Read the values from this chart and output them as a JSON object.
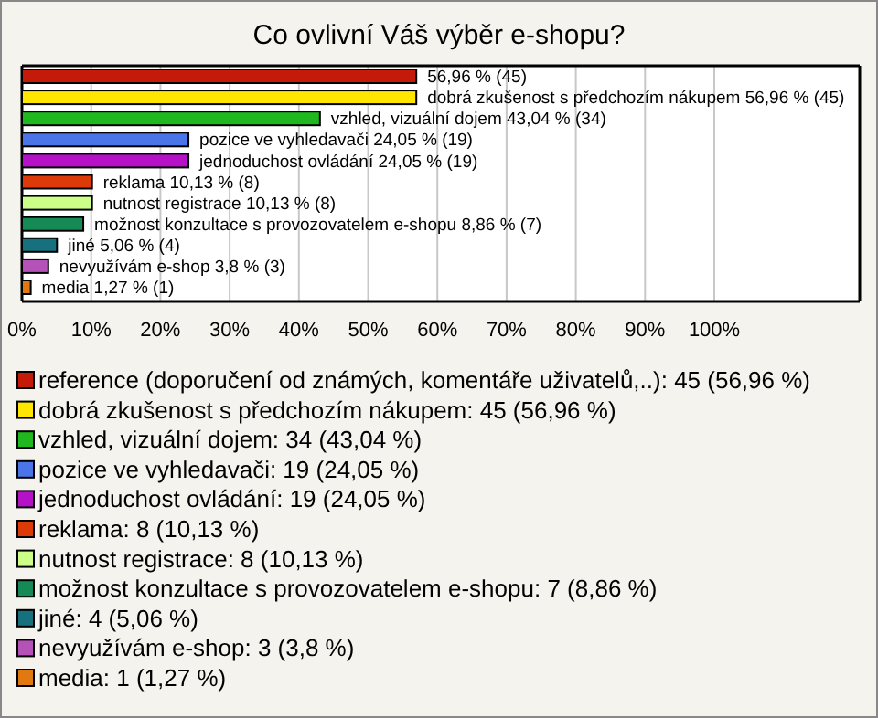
{
  "chart_data": {
    "type": "bar",
    "orientation": "horizontal",
    "title": "Co ovlivní Váš výběr e-shopu?",
    "categories": [
      null,
      null,
      null,
      null,
      null,
      null,
      null,
      null,
      null,
      null,
      null
    ],
    "values": [
      56.96,
      56.96,
      43.04,
      24.05,
      24.05,
      10.13,
      10.13,
      8.86,
      5.06,
      3.8,
      1.27
    ],
    "value_labels": [
      "56,96 % (45)",
      "dobrá zkušenost s předchozím nákupem 56,96 % (45)",
      "vzhled, vizuální dojem 43,04 % (34)",
      "pozice ve vyhledavači 24,05 % (19)",
      "jednoduchost ovládání 24,05 % (19)",
      "reklama 10,13 % (8)",
      "nutnost registrace 10,13 % (8)",
      "možnost konzultace s provozovatelem e-shopu 8,86 % (7)",
      "jiné 5,06 % (4)",
      "nevyužívám e-shop 3,8 % (3)",
      "media 1,27 % (1)"
    ],
    "colors": [
      "#c41a0a",
      "#ffe600",
      "#1fb81f",
      "#4a74e8",
      "#b512c8",
      "#dd3a0a",
      "#ccff88",
      "#158a55",
      "#16707e",
      "#b452b8",
      "#e07a10"
    ],
    "annotations": [
      "reference (doporučení od známých, komentáře uživatelů,..): 45 (56,96 %)",
      "dobrá zkušenost s předchozím nákupem: 45 (56,96 %)",
      "vzhled, vizuální dojem: 34 (43,04 %)",
      "pozice ve vyhledavači: 19 (24,05 %)",
      "jednoduchost ovládání: 19 (24,05 %)",
      "reklama: 8 (10,13 %)",
      "nutnost registrace: 8 (10,13 %)",
      "možnost konzultace s provozovatelem e-shopu: 7 (8,86 %)",
      "jiné: 4 (5,06 %)",
      "nevyužívám e-shop: 3 (3,8 %)",
      "media: 1 (1,27 %)"
    ],
    "xlim": [
      0,
      121
    ],
    "xticks": [
      {
        "value": 0,
        "label": "0%"
      },
      {
        "value": 10,
        "label": "10%"
      },
      {
        "value": 20,
        "label": "20%"
      },
      {
        "value": 30,
        "label": "30%"
      },
      {
        "value": 40,
        "label": "40%"
      },
      {
        "value": 50,
        "label": "50%"
      },
      {
        "value": 60,
        "label": "60%"
      },
      {
        "value": 70,
        "label": "70%"
      },
      {
        "value": 80,
        "label": "80%"
      },
      {
        "value": 90,
        "label": "90%"
      },
      {
        "value": 100,
        "label": "100%"
      }
    ],
    "tick_labels": "x",
    "grid": "x"
  }
}
